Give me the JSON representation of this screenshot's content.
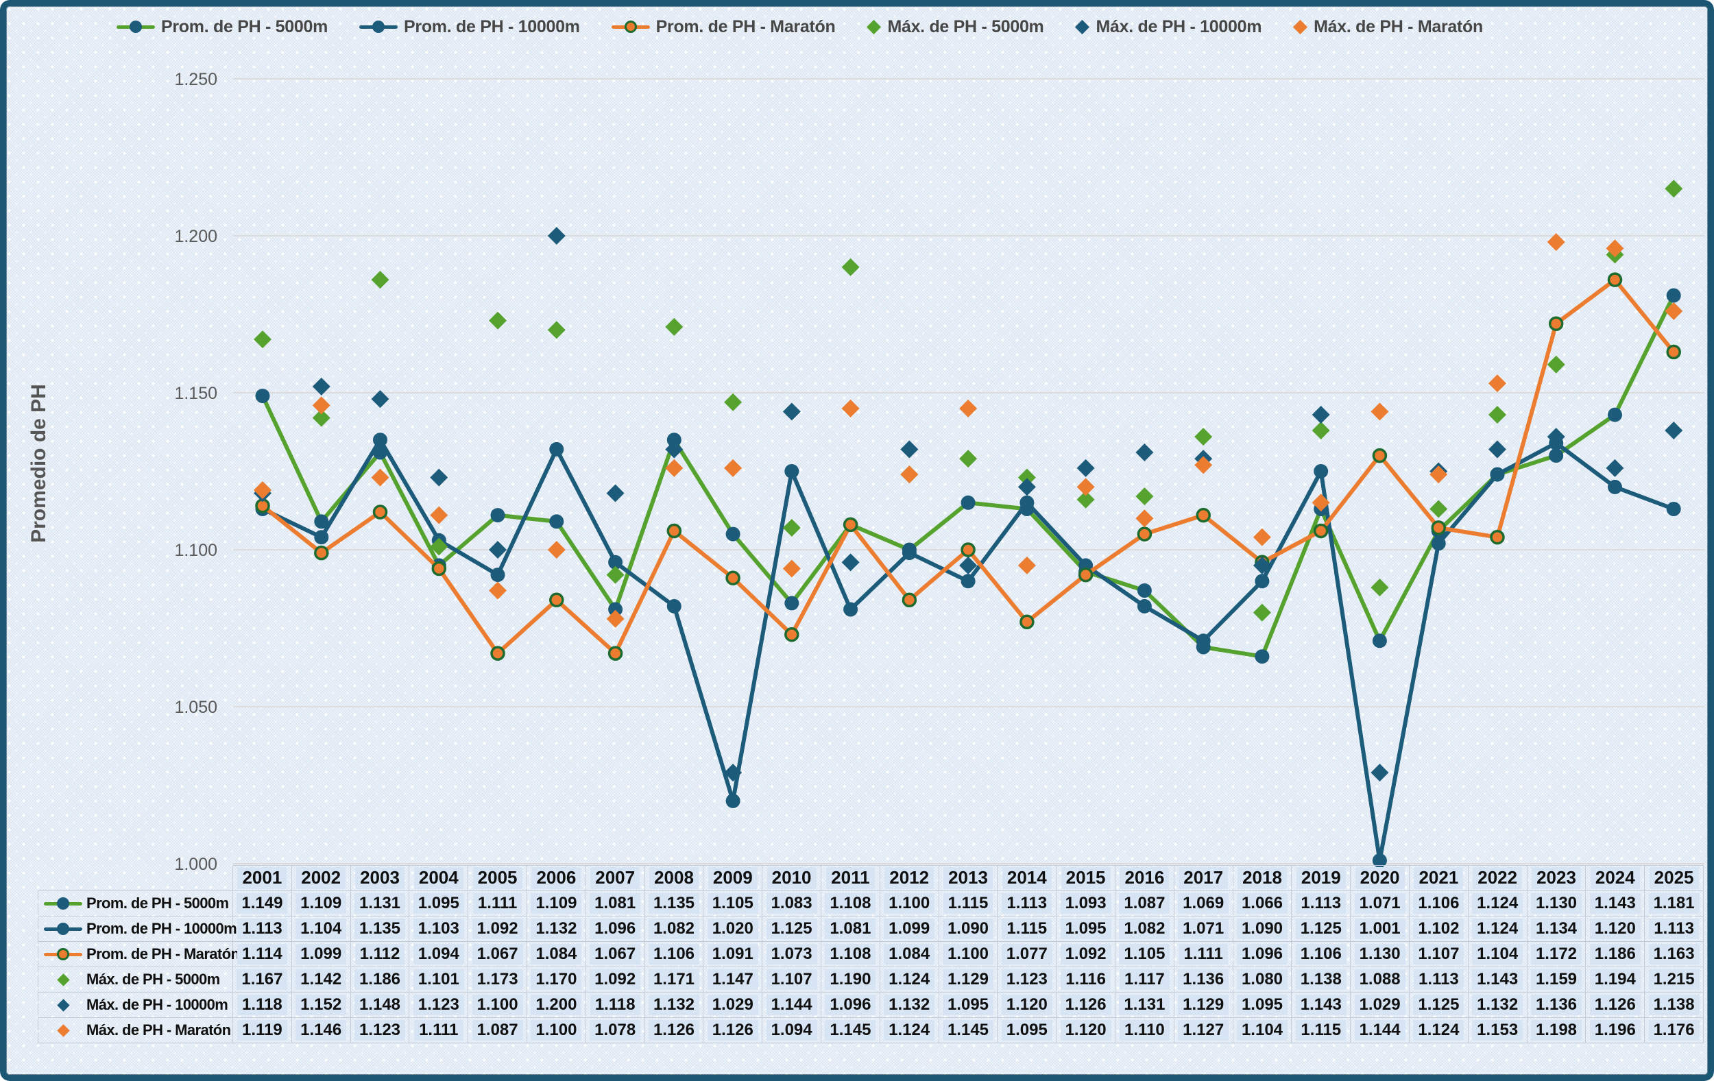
{
  "y_axis": {
    "title": "Promedio de PH",
    "tick_labels": [
      "1.250",
      "1.200",
      "1.150",
      "1.100",
      "1.050",
      "1.000"
    ]
  },
  "chart_data": {
    "type": "line",
    "title": "",
    "xlabel": "",
    "ylabel": "Promedio de PH",
    "ylim": [
      1.0,
      1.25
    ],
    "ytick_step": 0.05,
    "grid": "horizontal",
    "legend_position": "top",
    "value_format": "3-decimals",
    "categories": [
      "2001",
      "2002",
      "2003",
      "2004",
      "2005",
      "2006",
      "2007",
      "2008",
      "2009",
      "2010",
      "2011",
      "2012",
      "2013",
      "2014",
      "2015",
      "2016",
      "2017",
      "2018",
      "2019",
      "2020",
      "2021",
      "2022",
      "2023",
      "2024",
      "2025"
    ],
    "series": [
      {
        "name": "Prom. de PH - 5000m",
        "style": "line",
        "line_color": "#55A32E",
        "marker": "circle",
        "marker_color": "#1D5B7B",
        "values": [
          1.149,
          1.109,
          1.131,
          1.095,
          1.111,
          1.109,
          1.081,
          1.135,
          1.105,
          1.083,
          1.108,
          1.1,
          1.115,
          1.113,
          1.093,
          1.087,
          1.069,
          1.066,
          1.113,
          1.071,
          1.106,
          1.124,
          1.13,
          1.143,
          1.181
        ]
      },
      {
        "name": "Prom. de PH - 10000m",
        "style": "line",
        "line_color": "#1D5B7B",
        "marker": "circle",
        "marker_color": "#1D5B7B",
        "values": [
          1.113,
          1.104,
          1.135,
          1.103,
          1.092,
          1.132,
          1.096,
          1.082,
          1.02,
          1.125,
          1.081,
          1.099,
          1.09,
          1.115,
          1.095,
          1.082,
          1.071,
          1.09,
          1.125,
          1.001,
          1.102,
          1.124,
          1.134,
          1.12,
          1.113
        ]
      },
      {
        "name": "Prom. de PH - Maratón",
        "style": "line",
        "line_color": "#EC7C30",
        "marker": "circle",
        "marker_color": "#EC7C30",
        "marker_ring_color": "#1E6B2F",
        "values": [
          1.114,
          1.099,
          1.112,
          1.094,
          1.067,
          1.084,
          1.067,
          1.106,
          1.091,
          1.073,
          1.108,
          1.084,
          1.1,
          1.077,
          1.092,
          1.105,
          1.111,
          1.096,
          1.106,
          1.13,
          1.107,
          1.104,
          1.172,
          1.186,
          1.163
        ]
      },
      {
        "name": "Máx. de PH - 5000m",
        "style": "scatter",
        "marker": "diamond",
        "marker_color": "#55A32E",
        "values": [
          1.167,
          1.142,
          1.186,
          1.101,
          1.173,
          1.17,
          1.092,
          1.171,
          1.147,
          1.107,
          1.19,
          1.124,
          1.129,
          1.123,
          1.116,
          1.117,
          1.136,
          1.08,
          1.138,
          1.088,
          1.113,
          1.143,
          1.159,
          1.194,
          1.215
        ]
      },
      {
        "name": "Máx. de PH - 10000m",
        "style": "scatter",
        "marker": "diamond",
        "marker_color": "#1D5B7B",
        "values": [
          1.118,
          1.152,
          1.148,
          1.123,
          1.1,
          1.2,
          1.118,
          1.132,
          1.029,
          1.144,
          1.096,
          1.132,
          1.095,
          1.12,
          1.126,
          1.131,
          1.129,
          1.095,
          1.143,
          1.029,
          1.125,
          1.132,
          1.136,
          1.126,
          1.138
        ]
      },
      {
        "name": "Máx. de PH - Maratón",
        "style": "scatter",
        "marker": "diamond",
        "marker_color": "#EC7C30",
        "values": [
          1.119,
          1.146,
          1.123,
          1.111,
          1.087,
          1.1,
          1.078,
          1.126,
          1.126,
          1.094,
          1.145,
          1.124,
          1.145,
          1.095,
          1.12,
          1.11,
          1.127,
          1.104,
          1.115,
          1.144,
          1.124,
          1.153,
          1.198,
          1.196,
          1.176
        ]
      }
    ]
  },
  "style_colors": {
    "frame_border": "#1B5673",
    "gridline": "#dcdcdc",
    "tick_text": "#595959",
    "axis_title_text": "#555555",
    "legend_text": "#474747",
    "table_border": "#c5cdd9",
    "cell_patch": "#d7e4f3",
    "table_text": "#101010"
  }
}
